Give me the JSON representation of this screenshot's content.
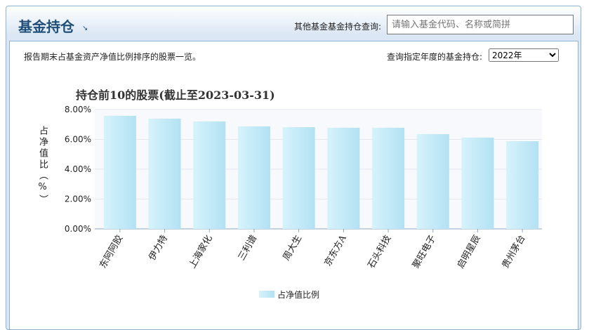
{
  "header": {
    "title": "基金持仓",
    "other_query_label": "其他基金基金持仓查询:",
    "search_placeholder": "请输入基金代码、名称或简拼"
  },
  "panel": {
    "description": "报告期末占基金资产净值比例排序的股票一览。",
    "year_label": "查询指定年度的基金持仓:",
    "year_selected": "2022年"
  },
  "chart_data": {
    "type": "bar",
    "title": "持仓前10的股票(截止至2023-03-31)",
    "ylabel": "占净值比（%）",
    "ylim": [
      0,
      8
    ],
    "yticks": [
      "0.00%",
      "2.00%",
      "4.00%",
      "6.00%",
      "8.00%"
    ],
    "categories": [
      "东阿阿胶",
      "伊力特",
      "上海家化",
      "三利谱",
      "周大生",
      "京东方A",
      "石头科技",
      "聚旺电子",
      "启明星辰",
      "贵州茅台"
    ],
    "series": [
      {
        "name": "占净值比例",
        "values": [
          7.58,
          7.39,
          7.2,
          6.87,
          6.82,
          6.78,
          6.78,
          6.35,
          6.12,
          5.88
        ]
      }
    ],
    "grid": true,
    "legend": "bottom",
    "colors": [
      "#d6f3fb",
      "#b3e1f3"
    ]
  }
}
